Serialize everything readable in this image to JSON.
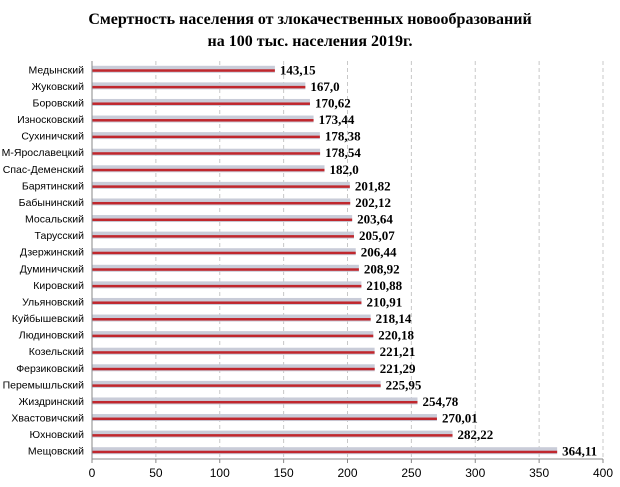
{
  "chart_data": {
    "type": "bar",
    "orientation": "horizontal",
    "title_lines": [
      "Смертность  населения от злокачественных новообразований",
      "на 100 тыс. населения 2019г."
    ],
    "categories": [
      "Медынский",
      "Жуковский",
      "Боровский",
      "Износковский",
      "Сухиничский",
      "М-Ярославецкий",
      "Спас-Деменский",
      "Барятинский",
      "Бабынинский",
      "Мосальский",
      "Тарусский",
      "Дзержинский",
      "Думиничский",
      "Кировский",
      "Ульяновский",
      "Куйбышевский",
      "Людиновский",
      "Козельский",
      "Ферзиковский",
      "Перемышльский",
      "Жиздринский",
      "Хвастовичский",
      "Юхновский",
      "Мещовский"
    ],
    "values": [
      143.15,
      167.0,
      170.62,
      173.44,
      178.38,
      178.54,
      182.0,
      201.82,
      202.12,
      203.64,
      205.07,
      206.44,
      208.92,
      210.88,
      210.91,
      218.14,
      220.18,
      221.21,
      221.29,
      225.95,
      254.78,
      270.01,
      282.22,
      364.11
    ],
    "value_labels": [
      "143,15",
      "167,0",
      "170,62",
      "173,44",
      "178,38",
      "178,54",
      "182,0",
      "201,82",
      "202,12",
      "203,64",
      "205,07",
      "206,44",
      "208,92",
      "210,88",
      "210,91",
      "218,14",
      "220,18",
      "221,21",
      "221,29",
      "225,95",
      "254,78",
      "270,01",
      "282,22",
      "364,11"
    ],
    "x_ticks": [
      "0",
      "50",
      "100",
      "150",
      "200",
      "250",
      "300",
      "350",
      "400"
    ],
    "xlim": [
      0,
      400
    ],
    "grid": "vertical-dashed",
    "bar_color": "#c0272d",
    "bar_shade_color": "#c9ccd8"
  }
}
